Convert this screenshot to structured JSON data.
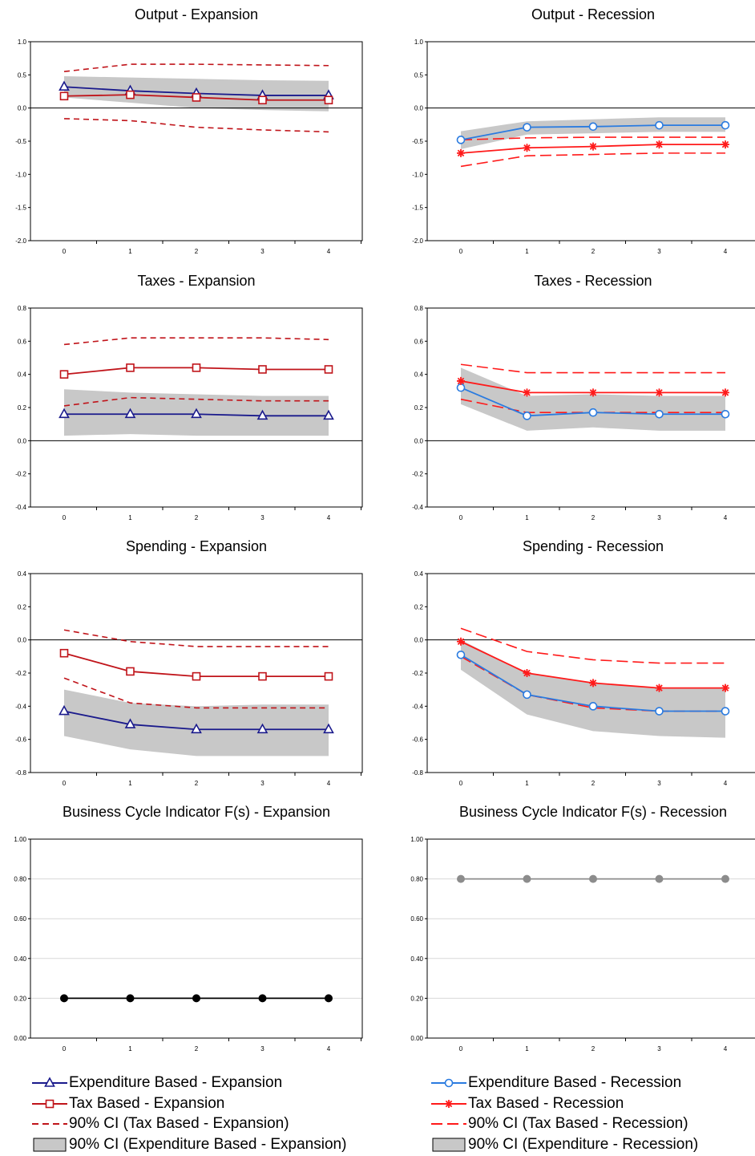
{
  "x_ticks": [
    "0",
    "1",
    "2",
    "3",
    "4"
  ],
  "series_styles": {
    "exp_based_expansion": {
      "color": "#1a1a8c",
      "marker": "triangle"
    },
    "tax_based_expansion": {
      "color": "#c0141a",
      "marker": "square"
    },
    "ci_tax_expansion": {
      "color": "#c0141a",
      "dash": "short"
    },
    "ci_exp_expansion": {
      "color": "#c8c8c8"
    },
    "exp_based_recession": {
      "color": "#2a7be0",
      "marker": "circle"
    },
    "tax_based_recession": {
      "color": "#ff1a1a",
      "marker": "star"
    },
    "ci_tax_recession": {
      "color": "#ff1a1a",
      "dash": "long"
    },
    "ci_exp_recession": {
      "color": "#c8c8c8"
    },
    "bci_expansion": {
      "color": "#000000"
    },
    "bci_recession": {
      "color": "#8c8c8c"
    }
  },
  "chart_data": [
    {
      "type": "line",
      "title": "Output - Expansion",
      "x": [
        0,
        1,
        2,
        3,
        4
      ],
      "ylim": [
        -2.0,
        1.0
      ],
      "yticks": [
        "1.0",
        "0.5",
        "0.0",
        "-0.5",
        "-1.0",
        "-1.5",
        "-2.0"
      ],
      "ytick_values": [
        1.0,
        0.5,
        0.0,
        -0.5,
        -1.0,
        -1.5,
        -2.0
      ],
      "zero_line": true,
      "band": {
        "style": "ci_exp_expansion",
        "upper": [
          0.48,
          0.46,
          0.44,
          0.42,
          0.41
        ],
        "lower": [
          0.16,
          0.08,
          0.0,
          -0.03,
          -0.05
        ]
      },
      "series": [
        {
          "style": "ci_tax_expansion",
          "values": [
            0.55,
            0.66,
            0.66,
            0.65,
            0.64
          ]
        },
        {
          "style": "ci_tax_expansion",
          "values": [
            -0.16,
            -0.19,
            -0.29,
            -0.33,
            -0.36
          ]
        },
        {
          "style": "exp_based_expansion",
          "values": [
            0.32,
            0.26,
            0.22,
            0.19,
            0.19
          ]
        },
        {
          "style": "tax_based_expansion",
          "values": [
            0.18,
            0.2,
            0.16,
            0.12,
            0.12
          ]
        }
      ]
    },
    {
      "type": "line",
      "title": "Output - Recession",
      "x": [
        0,
        1,
        2,
        3,
        4
      ],
      "ylim": [
        -2.0,
        1.0
      ],
      "yticks": [
        "1.0",
        "0.5",
        "0.0",
        "-0.5",
        "-1.0",
        "-1.5",
        "-2.0"
      ],
      "ytick_values": [
        1.0,
        0.5,
        0.0,
        -0.5,
        -1.0,
        -1.5,
        -2.0
      ],
      "zero_line": true,
      "band": {
        "style": "ci_exp_recession",
        "upper": [
          -0.35,
          -0.2,
          -0.17,
          -0.14,
          -0.14
        ],
        "lower": [
          -0.62,
          -0.4,
          -0.38,
          -0.36,
          -0.36
        ]
      },
      "series": [
        {
          "style": "ci_tax_recession",
          "values": [
            -0.48,
            -0.45,
            -0.44,
            -0.44,
            -0.44
          ]
        },
        {
          "style": "ci_tax_recession",
          "values": [
            -0.88,
            -0.72,
            -0.7,
            -0.68,
            -0.68
          ]
        },
        {
          "style": "exp_based_recession",
          "values": [
            -0.48,
            -0.29,
            -0.28,
            -0.26,
            -0.26
          ]
        },
        {
          "style": "tax_based_recession",
          "values": [
            -0.68,
            -0.6,
            -0.58,
            -0.55,
            -0.55
          ]
        }
      ]
    },
    {
      "type": "line",
      "title": "Taxes - Expansion",
      "x": [
        0,
        1,
        2,
        3,
        4
      ],
      "ylim": [
        -0.4,
        0.8
      ],
      "yticks": [
        "0.8",
        "0.6",
        "0.4",
        "0.2",
        "0.0",
        "-0.2",
        "-0.4"
      ],
      "ytick_values": [
        0.8,
        0.6,
        0.4,
        0.2,
        0.0,
        -0.2,
        -0.4
      ],
      "zero_line": true,
      "band": {
        "style": "ci_exp_expansion",
        "upper": [
          0.31,
          0.29,
          0.28,
          0.27,
          0.27
        ],
        "lower": [
          0.03,
          0.04,
          0.03,
          0.03,
          0.03
        ]
      },
      "series": [
        {
          "style": "ci_tax_expansion",
          "values": [
            0.58,
            0.62,
            0.62,
            0.62,
            0.61
          ]
        },
        {
          "style": "ci_tax_expansion",
          "values": [
            0.21,
            0.26,
            0.25,
            0.24,
            0.24
          ]
        },
        {
          "style": "exp_based_expansion",
          "values": [
            0.16,
            0.16,
            0.16,
            0.15,
            0.15
          ]
        },
        {
          "style": "tax_based_expansion",
          "values": [
            0.4,
            0.44,
            0.44,
            0.43,
            0.43
          ]
        }
      ]
    },
    {
      "type": "line",
      "title": "Taxes - Recession",
      "x": [
        0,
        1,
        2,
        3,
        4
      ],
      "ylim": [
        -0.4,
        0.8
      ],
      "yticks": [
        "0.8",
        "0.6",
        "0.4",
        "0.2",
        "0.0",
        "-0.2",
        "-0.4"
      ],
      "ytick_values": [
        0.8,
        0.6,
        0.4,
        0.2,
        0.0,
        -0.2,
        -0.4
      ],
      "zero_line": true,
      "band": {
        "style": "ci_exp_recession",
        "upper": [
          0.44,
          0.27,
          0.28,
          0.27,
          0.27
        ],
        "lower": [
          0.22,
          0.06,
          0.08,
          0.06,
          0.06
        ]
      },
      "series": [
        {
          "style": "ci_tax_recession",
          "values": [
            0.46,
            0.41,
            0.41,
            0.41,
            0.41
          ]
        },
        {
          "style": "ci_tax_recession",
          "values": [
            0.25,
            0.17,
            0.17,
            0.17,
            0.17
          ]
        },
        {
          "style": "exp_based_recession",
          "values": [
            0.32,
            0.15,
            0.17,
            0.16,
            0.16
          ]
        },
        {
          "style": "tax_based_recession",
          "values": [
            0.36,
            0.29,
            0.29,
            0.29,
            0.29
          ]
        }
      ]
    },
    {
      "type": "line",
      "title": "Spending - Expansion",
      "x": [
        0,
        1,
        2,
        3,
        4
      ],
      "ylim": [
        -0.8,
        0.4
      ],
      "yticks": [
        "0.4",
        "0.2",
        "0.0",
        "-0.2",
        "-0.4",
        "-0.6",
        "-0.8"
      ],
      "ytick_values": [
        0.4,
        0.2,
        0.0,
        -0.2,
        -0.4,
        -0.6,
        -0.8
      ],
      "zero_line": true,
      "band": {
        "style": "ci_exp_expansion",
        "upper": [
          -0.3,
          -0.38,
          -0.4,
          -0.39,
          -0.39
        ],
        "lower": [
          -0.58,
          -0.66,
          -0.7,
          -0.7,
          -0.7
        ]
      },
      "series": [
        {
          "style": "ci_tax_expansion",
          "values": [
            0.06,
            -0.01,
            -0.04,
            -0.04,
            -0.04
          ]
        },
        {
          "style": "ci_tax_expansion",
          "values": [
            -0.23,
            -0.38,
            -0.41,
            -0.41,
            -0.41
          ]
        },
        {
          "style": "exp_based_expansion",
          "values": [
            -0.43,
            -0.51,
            -0.54,
            -0.54,
            -0.54
          ]
        },
        {
          "style": "tax_based_expansion",
          "values": [
            -0.08,
            -0.19,
            -0.22,
            -0.22,
            -0.22
          ]
        }
      ]
    },
    {
      "type": "line",
      "title": "Spending - Recession",
      "x": [
        0,
        1,
        2,
        3,
        4
      ],
      "ylim": [
        -0.8,
        0.4
      ],
      "yticks": [
        "0.4",
        "0.2",
        "0.0",
        "-0.2",
        "-0.4",
        "-0.6",
        "-0.8"
      ],
      "ytick_values": [
        0.4,
        0.2,
        0.0,
        -0.2,
        -0.4,
        -0.6,
        -0.8
      ],
      "zero_line": true,
      "band": {
        "style": "ci_exp_recession",
        "upper": [
          0.0,
          -0.2,
          -0.26,
          -0.29,
          -0.29
        ],
        "lower": [
          -0.18,
          -0.45,
          -0.55,
          -0.58,
          -0.59
        ]
      },
      "series": [
        {
          "style": "ci_tax_recession",
          "values": [
            0.07,
            -0.07,
            -0.12,
            -0.14,
            -0.14
          ]
        },
        {
          "style": "ci_tax_recession",
          "values": [
            -0.1,
            -0.33,
            -0.41,
            -0.43,
            -0.43
          ]
        },
        {
          "style": "exp_based_recession",
          "values": [
            -0.09,
            -0.33,
            -0.4,
            -0.43,
            -0.43
          ]
        },
        {
          "style": "tax_based_recession",
          "values": [
            -0.01,
            -0.2,
            -0.26,
            -0.29,
            -0.29
          ]
        }
      ]
    },
    {
      "type": "line",
      "title": "Business Cycle Indicator F(s) - Expansion",
      "x": [
        0,
        1,
        2,
        3,
        4
      ],
      "ylim": [
        0.0,
        1.0
      ],
      "yticks": [
        "1.00",
        "0.80",
        "0.60",
        "0.40",
        "0.20",
        "0.00"
      ],
      "ytick_values": [
        1.0,
        0.8,
        0.6,
        0.4,
        0.2,
        0.0
      ],
      "zero_line": false,
      "grid": true,
      "series": [
        {
          "style": "bci_expansion",
          "values": [
            0.2,
            0.2,
            0.2,
            0.2,
            0.2
          ]
        }
      ]
    },
    {
      "type": "line",
      "title": "Business Cycle Indicator F(s) - Recession",
      "x": [
        0,
        1,
        2,
        3,
        4
      ],
      "ylim": [
        0.0,
        1.0
      ],
      "yticks": [
        "1.00",
        "0.80",
        "0.60",
        "0.40",
        "0.20",
        "0.00"
      ],
      "ytick_values": [
        1.0,
        0.8,
        0.6,
        0.4,
        0.2,
        0.0
      ],
      "zero_line": false,
      "grid": true,
      "series": [
        {
          "style": "bci_recession",
          "values": [
            0.8,
            0.8,
            0.8,
            0.8,
            0.8
          ]
        }
      ]
    }
  ],
  "legend": {
    "left": [
      {
        "style": "exp_based_expansion",
        "label": "Expenditure Based - Expansion"
      },
      {
        "style": "tax_based_expansion",
        "label": "Tax Based - Expansion"
      },
      {
        "style": "ci_tax_expansion",
        "label": "90% CI (Tax Based - Expansion)"
      },
      {
        "style": "ci_exp_expansion",
        "label": "90% CI (Expenditure Based - Expansion)"
      }
    ],
    "right": [
      {
        "style": "exp_based_recession",
        "label": "Expenditure Based - Recession"
      },
      {
        "style": "tax_based_recession",
        "label": "Tax Based - Recession"
      },
      {
        "style": "ci_tax_recession",
        "label": "90% CI (Tax Based - Recession)"
      },
      {
        "style": "ci_exp_recession",
        "label": "90% CI (Expenditure - Recession)"
      }
    ]
  }
}
